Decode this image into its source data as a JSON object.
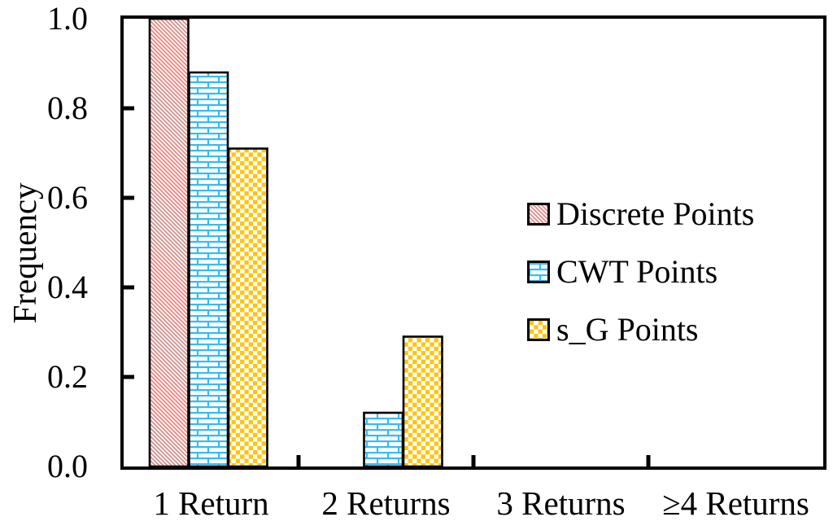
{
  "figure": {
    "background_color": "#ffffff",
    "axis_color": "#000000",
    "text_color": "#000000"
  },
  "chart_data": {
    "type": "bar",
    "title": "",
    "xlabel": "",
    "ylabel": "Frequency",
    "categories": [
      "1 Return",
      "2 Returns",
      "3 Returns",
      "≥4 Returns"
    ],
    "series": [
      {
        "name": "Discrete Points",
        "pattern": "diagonal-stripes",
        "color": "#e1908c",
        "values": [
          1.0,
          0.0,
          0.0,
          0.0
        ]
      },
      {
        "name": "CWT Points",
        "pattern": "brick",
        "color": "#35bcf0",
        "values": [
          0.88,
          0.12,
          0.0,
          0.0
        ]
      },
      {
        "name": "s_G Points",
        "pattern": "checker",
        "color": "#ffc40d",
        "values": [
          0.71,
          0.29,
          0.0,
          0.0
        ]
      }
    ],
    "ylim": [
      0.0,
      1.0
    ],
    "ytick_interval": 0.2,
    "yticks": [
      "0.0",
      "0.2",
      "0.4",
      "0.6",
      "0.8",
      "1.0"
    ],
    "grid": false,
    "bar_outline_color": "#000000",
    "legend_position": "middle-right-inside"
  }
}
